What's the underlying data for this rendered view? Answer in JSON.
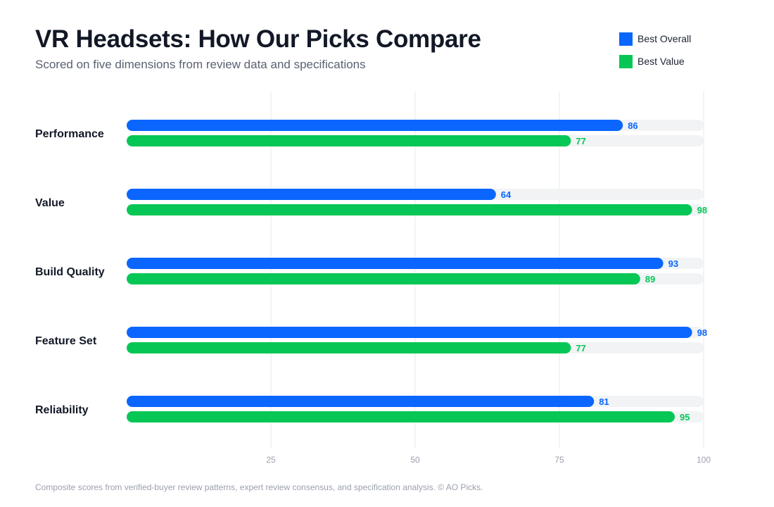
{
  "header": {
    "title": "VR Headsets: How Our Picks Compare",
    "subtitle": "Scored on five dimensions from review data and specifications"
  },
  "footer": {
    "note": "Composite scores from verified-buyer review patterns, expert review consensus, and specification analysis. © AO Picks."
  },
  "colors": {
    "best_overall": "#0a66ff",
    "best_value": "#06c755",
    "track": "#f1f3f5",
    "grid": "#e6e8eb",
    "tick_text": "#9aa0ab",
    "category_text": "#121826"
  },
  "chart_data": {
    "type": "bar",
    "orientation": "horizontal",
    "title": "VR Headsets: How Our Picks Compare",
    "subtitle": "Scored on five dimensions from review data and specifications",
    "categories": [
      "Performance",
      "Value",
      "Build Quality",
      "Feature Set",
      "Reliability"
    ],
    "series": [
      {
        "name": "Best Overall",
        "color": "#0a66ff",
        "values": [
          86,
          64,
          93,
          98,
          81
        ]
      },
      {
        "name": "Best Value",
        "color": "#06c755",
        "values": [
          77,
          98,
          89,
          77,
          95
        ]
      }
    ],
    "xlim": [
      0,
      100
    ],
    "xticks": [
      25,
      50,
      75,
      100
    ],
    "grid": true,
    "legend_position": "top-right",
    "data_labels": true
  }
}
